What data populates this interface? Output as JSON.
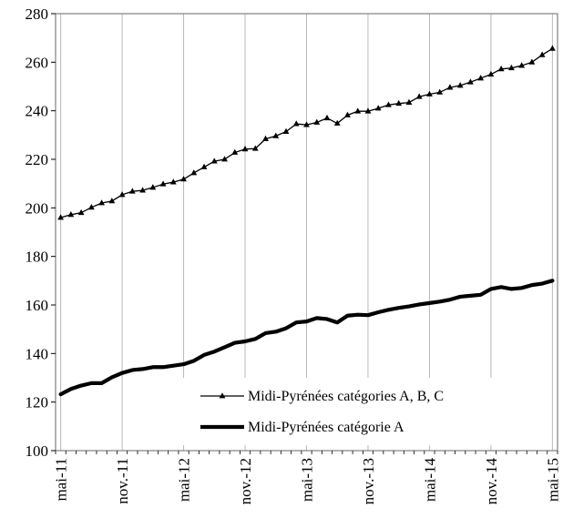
{
  "chart_data": {
    "type": "line",
    "x": [
      "mai-11",
      "juin-11",
      "juil.-11",
      "août-11",
      "sept.-11",
      "oct.-11",
      "nov.-11",
      "déc.-11",
      "janv.-12",
      "févr.-12",
      "mars-12",
      "avr.-12",
      "mai-12",
      "juin-12",
      "juil.-12",
      "août-12",
      "sept.-12",
      "oct.-12",
      "nov.-12",
      "déc.-12",
      "janv.-13",
      "févr.-13",
      "mars-13",
      "avr.-13",
      "mai-13",
      "juin-13",
      "juil.-13",
      "août-13",
      "sept.-13",
      "oct.-13",
      "nov.-13",
      "déc.-13",
      "janv.-14",
      "févr.-14",
      "mars-14",
      "avr.-14",
      "mai-14",
      "juin-14",
      "juil.-14",
      "août-14",
      "sept.-14",
      "oct.-14",
      "nov.-14",
      "déc.-14",
      "janv.-15",
      "févr.-15",
      "mars-15",
      "avr.-15",
      "mai-15"
    ],
    "x_tick_labels": [
      "mai-11",
      "nov.-11",
      "mai-12",
      "nov.-12",
      "mai-13",
      "nov.-13",
      "mai-14",
      "nov.-14",
      "mai-15"
    ],
    "y_ticks": [
      100,
      120,
      140,
      160,
      180,
      200,
      220,
      240,
      260,
      280
    ],
    "ylim": [
      100,
      280
    ],
    "grid": "vertical",
    "legend_position": "bottom-right",
    "series": [
      {
        "name": "Midi-Pyrénées catégories A, B, C",
        "color": "#000000",
        "marker": "triangle",
        "values": [
          196,
          197.2,
          198,
          200.2,
          202,
          202.8,
          205.4,
          206.8,
          207.2,
          208.4,
          209.8,
          210.6,
          211.8,
          214.4,
          216.8,
          219.2,
          220,
          222.8,
          224.2,
          224.4,
          228.4,
          229.6,
          231.4,
          234.6,
          234.2,
          235.2,
          237,
          234.8,
          238.2,
          239.8,
          239.8,
          241,
          242.4,
          243,
          243.4,
          245.8,
          246.8,
          247.6,
          249.6,
          250.4,
          251.8,
          253.4,
          255,
          257.2,
          257.6,
          258.6,
          260,
          263,
          265.6
        ]
      },
      {
        "name": "Midi-Pyrénées catégorie A",
        "color": "#000000",
        "marker": "none",
        "values": [
          123.2,
          125.4,
          126.8,
          127.8,
          127.8,
          130.2,
          132,
          133.2,
          133.6,
          134.4,
          134.4,
          135,
          135.6,
          137,
          139.4,
          140.8,
          142.6,
          144.4,
          145,
          146,
          148.4,
          149,
          150.4,
          152.8,
          153.2,
          154.6,
          154.2,
          152.8,
          155.6,
          156,
          155.8,
          157,
          158,
          158.8,
          159.4,
          160.2,
          160.8,
          161.4,
          162.2,
          163.4,
          163.8,
          164.2,
          166.6,
          167.4,
          166.6,
          167,
          168.2,
          168.8,
          170
        ]
      }
    ]
  }
}
